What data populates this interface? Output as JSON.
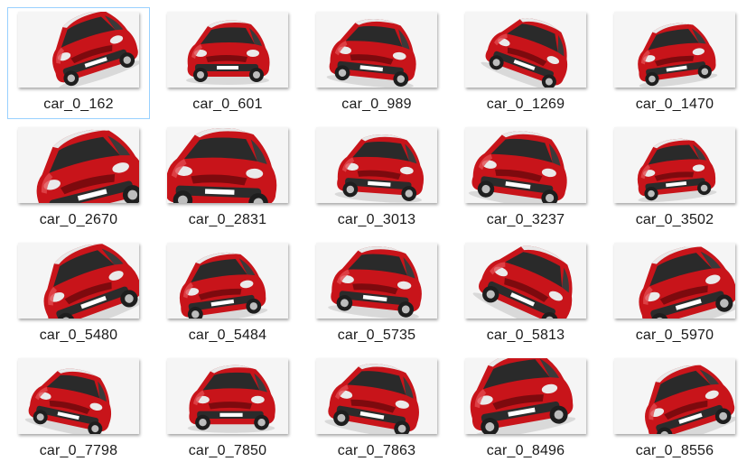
{
  "files": [
    {
      "name": "car_0_162",
      "rot": -18,
      "scale": 1.05,
      "dx": 14,
      "dy": -6,
      "selected": true
    },
    {
      "name": "car_0_601",
      "rot": 0,
      "scale": 1.0,
      "dx": 0,
      "dy": 0
    },
    {
      "name": "car_0_989",
      "rot": 6,
      "scale": 1.05,
      "dx": -4,
      "dy": 0
    },
    {
      "name": "car_0_1269",
      "rot": 20,
      "scale": 1.0,
      "dx": 4,
      "dy": -2
    },
    {
      "name": "car_0_1470",
      "rot": -8,
      "scale": 0.95,
      "dx": 0,
      "dy": 2
    },
    {
      "name": "car_0_2670",
      "rot": -14,
      "scale": 1.35,
      "dx": 10,
      "dy": 8
    },
    {
      "name": "car_0_2831",
      "rot": 2,
      "scale": 1.35,
      "dx": -8,
      "dy": 4
    },
    {
      "name": "car_0_3013",
      "rot": 4,
      "scale": 1.05,
      "dx": 4,
      "dy": 0
    },
    {
      "name": "car_0_3237",
      "rot": 8,
      "scale": 1.15,
      "dx": -6,
      "dy": 0
    },
    {
      "name": "car_0_3502",
      "rot": -6,
      "scale": 0.95,
      "dx": 0,
      "dy": 2
    },
    {
      "name": "car_0_5480",
      "rot": -20,
      "scale": 1.2,
      "dx": 10,
      "dy": 2
    },
    {
      "name": "car_0_5484",
      "rot": -8,
      "scale": 1.05,
      "dx": -8,
      "dy": 4
    },
    {
      "name": "car_0_5735",
      "rot": 6,
      "scale": 1.1,
      "dx": 0,
      "dy": -2
    },
    {
      "name": "car_0_5813",
      "rot": 24,
      "scale": 1.15,
      "dx": 4,
      "dy": 0
    },
    {
      "name": "car_0_5970",
      "rot": -16,
      "scale": 1.2,
      "dx": 10,
      "dy": 4
    },
    {
      "name": "car_0_7798",
      "rot": 12,
      "scale": 1.0,
      "dx": -8,
      "dy": 2
    },
    {
      "name": "car_0_7850",
      "rot": 0,
      "scale": 1.05,
      "dx": 4,
      "dy": 0
    },
    {
      "name": "car_0_7863",
      "rot": 10,
      "scale": 1.1,
      "dx": -2,
      "dy": 0
    },
    {
      "name": "car_0_8496",
      "rot": -10,
      "scale": 1.25,
      "dx": -8,
      "dy": -6
    },
    {
      "name": "car_0_8556",
      "rot": -18,
      "scale": 1.1,
      "dx": 12,
      "dy": 4
    }
  ],
  "colors": {
    "car_body": "#c8141a",
    "car_dark": "#7d0a0e",
    "selection_border": "#99d1ff"
  }
}
